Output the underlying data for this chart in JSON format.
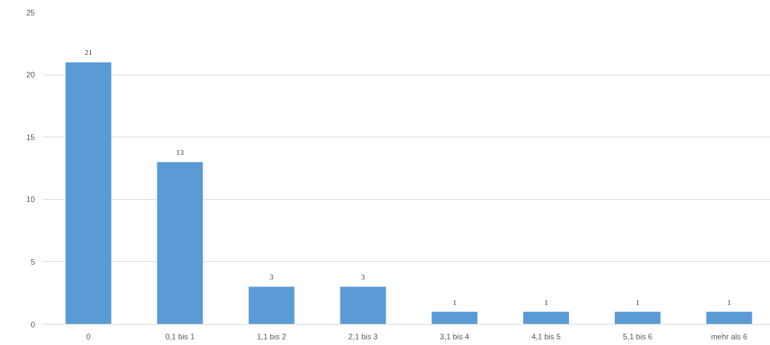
{
  "chart_data": {
    "type": "bar",
    "categories": [
      "0",
      "0,1 bis 1",
      "1,1 bis 2",
      "2,1 bis 3",
      "3,1 bis 4",
      "4,1 bis 5",
      "5,1 bis 6",
      "mehr als 6"
    ],
    "values": [
      21,
      13,
      3,
      3,
      1,
      1,
      1,
      1
    ],
    "color": "#5b9bd5",
    "ylim": [
      0,
      25
    ],
    "yticks": [
      0,
      5,
      10,
      15,
      20,
      25
    ],
    "grid": "y",
    "data_labels": true
  }
}
